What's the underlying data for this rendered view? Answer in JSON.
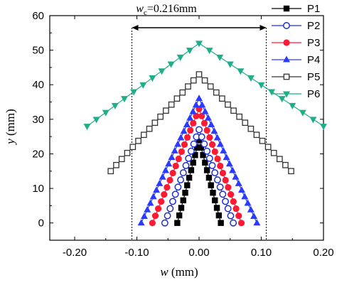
{
  "chart_data": {
    "type": "scatter",
    "xlabel": "w (mm)",
    "xlabel_var": "w",
    "xlabel_unit": " (mm)",
    "ylabel": "y (mm)",
    "ylabel_var": "y",
    "ylabel_unit": " (mm)",
    "xlim": [
      -0.24,
      0.2
    ],
    "ylim": [
      -5,
      60
    ],
    "xticks": [
      -0.2,
      -0.1,
      0.0,
      0.1,
      0.2
    ],
    "xtick_labels": [
      "-0.20",
      "-0.10",
      "0.00",
      "0.10",
      "0.20"
    ],
    "yticks": [
      0,
      10,
      20,
      30,
      40,
      50,
      60
    ],
    "ytick_labels": [
      "0",
      "10",
      "20",
      "30",
      "40",
      "50",
      "60"
    ],
    "annotation": {
      "text_var": "w",
      "text_sub": "c",
      "text_rest": "=0.216mm",
      "x_from": -0.108,
      "x_to": 0.108,
      "y": 56.5
    },
    "legend_position": "top-right",
    "series": [
      {
        "name": "P1",
        "color": "#000000",
        "marker": "square-filled",
        "apex": [
          0.0,
          24.0
        ],
        "left": [
          -0.035,
          0.0
        ],
        "right": [
          0.035,
          0.0
        ],
        "points_per_side": 11
      },
      {
        "name": "P2",
        "color": "#1f2fd0",
        "marker": "circle-open",
        "apex": [
          0.0,
          27.0
        ],
        "left": [
          -0.055,
          0.0
        ],
        "right": [
          0.055,
          0.0
        ],
        "points_per_side": 13
      },
      {
        "name": "P3",
        "color": "#ff1a33",
        "marker": "circle-filled",
        "apex": [
          0.0,
          33.0
        ],
        "left": [
          -0.075,
          0.0
        ],
        "right": [
          0.068,
          0.0
        ],
        "points_per_side": 16
      },
      {
        "name": "P4",
        "color": "#2a3bff",
        "marker": "triangle-up-filled",
        "apex": [
          0.0,
          36.0
        ],
        "left": [
          -0.093,
          0.0
        ],
        "right": [
          0.093,
          0.0
        ],
        "points_per_side": 19
      },
      {
        "name": "P5",
        "color": "#333333",
        "marker": "square-open",
        "apex": [
          0.0,
          43.0
        ],
        "left": [
          -0.142,
          15.0
        ],
        "right": [
          0.148,
          15.0
        ],
        "points_per_side": 16
      },
      {
        "name": "P6",
        "color": "#1fae8a",
        "marker": "triangle-down-filled",
        "apex": [
          0.0,
          52.0
        ],
        "left": [
          -0.18,
          28.0
        ],
        "right": [
          0.2,
          28.0
        ],
        "points_per_side": 12
      }
    ]
  }
}
